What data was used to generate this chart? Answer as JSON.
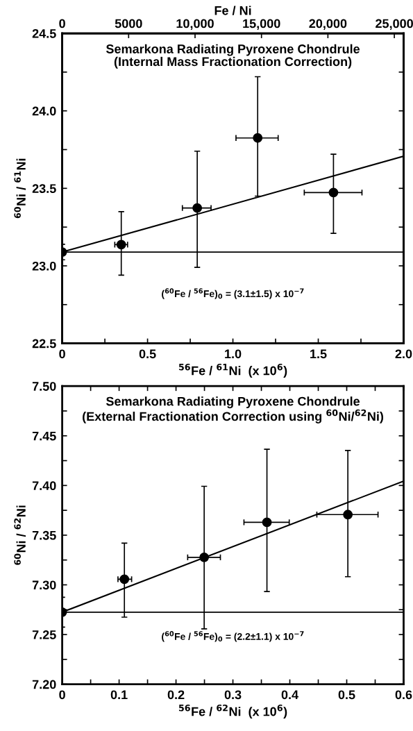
{
  "chart_data": [
    {
      "type": "scatter",
      "title": "Semarkona Radiating Pyroxene Chondrule\n(Internal Mass Fractionation Correction)",
      "xlabel": "$^{56}$Fe / $^{61}$Ni  (x 10$^{6}$)",
      "ylabel": "$^{60}$Ni / $^{61}$Ni",
      "x2label": "Fe / Ni",
      "xlim": [
        0,
        2.0
      ],
      "ylim": [
        22.5,
        24.5
      ],
      "xticks": [
        0,
        {
          "value": 0.25,
          "label": null
        },
        0.5,
        {
          "value": 0.75,
          "label": null
        },
        {
          "value": 1,
          "label": "1.0"
        },
        {
          "value": 1.25,
          "label": null
        },
        1.5,
        {
          "value": 1.75,
          "label": null
        },
        {
          "value": 2,
          "label": "2.0"
        }
      ],
      "yticks": [
        22.5,
        {
          "value": 22.75,
          "label": null
        },
        {
          "value": 23,
          "label": "23.0"
        },
        {
          "value": 23.25,
          "label": null
        },
        23.5,
        {
          "value": 23.75,
          "label": null
        },
        {
          "value": 24,
          "label": "24.0"
        },
        {
          "value": 24.25,
          "label": null
        },
        24.5
      ],
      "x2lim": [
        0,
        25700
      ],
      "x2ticks": [
        0,
        5000,
        {
          "value": 10000,
          "label": "10,000"
        },
        {
          "value": 15000,
          "label": "15,000"
        },
        {
          "value": 20000,
          "label": "20,000"
        },
        {
          "value": 25000,
          "label": "25,000"
        }
      ],
      "series": [
        {
          "type": "line",
          "color": "#000000",
          "x": [
            0,
            2.0
          ],
          "values": [
            23.089,
            23.707
          ]
        },
        {
          "marker": "circle",
          "color": "#000000",
          "x": [
            0,
            0.346,
            0.791,
            1.145,
            1.589
          ],
          "values": [
            23.089,
            23.137,
            23.373,
            23.825,
            23.473
          ],
          "errors": [
            0.05,
            [
              22.94,
              23.35
            ],
            [
              22.99,
              23.74
            ],
            [
              23.45,
              24.22
            ],
            [
              23.21,
              23.72
            ]
          ],
          "xerrors": [
            null,
            [
              0.308,
              0.383
            ],
            [
              0.704,
              0.872
            ],
            [
              1.018,
              1.265
            ],
            [
              1.418,
              1.756
            ]
          ]
        }
      ],
      "ref_lines": [
        {
          "axis": "y",
          "value": 23.089,
          "color": "#000000"
        }
      ],
      "annotations": [
        "($^{60}$Fe / $^{56}$Fe)$_{0}$ = (3.1±1.5) x 10$^{−7}$"
      ]
    },
    {
      "type": "scatter",
      "title": "Semarkona Radiating Pyroxene Chondrule\n(External Fractionation Correction using $^{60}$Ni/$^{62}$Ni)",
      "xlabel": "$^{56}$Fe / $^{62}$Ni  (x 10$^{6}$)",
      "ylabel": "$^{60}$Ni / $^{62}$Ni",
      "xlim": [
        0,
        0.6
      ],
      "ylim": [
        7.2,
        7.5
      ],
      "xticks": [
        0,
        {
          "value": 0.05,
          "label": null
        },
        0.1,
        {
          "value": 0.15,
          "label": null
        },
        0.2,
        {
          "value": 0.25,
          "label": null
        },
        0.3,
        {
          "value": 0.35,
          "label": null
        },
        0.4,
        {
          "value": 0.45,
          "label": null
        },
        0.5,
        {
          "value": 0.55,
          "label": null
        },
        0.6
      ],
      "yticks": [
        {
          "value": 7.2,
          "label": "7.20"
        },
        {
          "value": 7.225,
          "label": null
        },
        7.25,
        {
          "value": 7.275,
          "label": null
        },
        {
          "value": 7.3,
          "label": "7.30"
        },
        {
          "value": 7.325,
          "label": null
        },
        7.35,
        {
          "value": 7.375,
          "label": null
        },
        {
          "value": 7.4,
          "label": "7.40"
        },
        {
          "value": 7.425,
          "label": null
        },
        7.45,
        {
          "value": 7.475,
          "label": null
        },
        {
          "value": 7.5,
          "label": "7.50"
        }
      ],
      "series": [
        {
          "type": "line",
          "color": "#000000",
          "x": [
            0,
            0.6
          ],
          "values": [
            7.2725,
            7.4044
          ]
        },
        {
          "marker": "circle",
          "color": "#000000",
          "x": [
            0,
            0.1093,
            0.2495,
            0.3598,
            0.502
          ],
          "values": [
            7.2725,
            7.3057,
            7.3277,
            7.3629,
            7.3707
          ],
          "errors": [
            0.015,
            [
              7.2675,
              7.342
            ],
            [
              7.2557,
              7.3992
            ],
            [
              7.2932,
              7.4365
            ],
            [
              7.3082,
              7.4352
            ]
          ],
          "xerrors": [
            null,
            [
              0.098,
              0.122
            ],
            [
              0.2205,
              0.278
            ],
            [
              0.3194,
              0.399
            ],
            [
              0.4475,
              0.555
            ]
          ]
        }
      ],
      "ref_lines": [
        {
          "axis": "y",
          "value": 7.2725,
          "color": "#000000"
        }
      ],
      "annotations": [
        "($^{60}$Fe / $^{56}$Fe)$_{0}$ = (2.2±1.1) x 10$^{−7}$"
      ]
    }
  ]
}
